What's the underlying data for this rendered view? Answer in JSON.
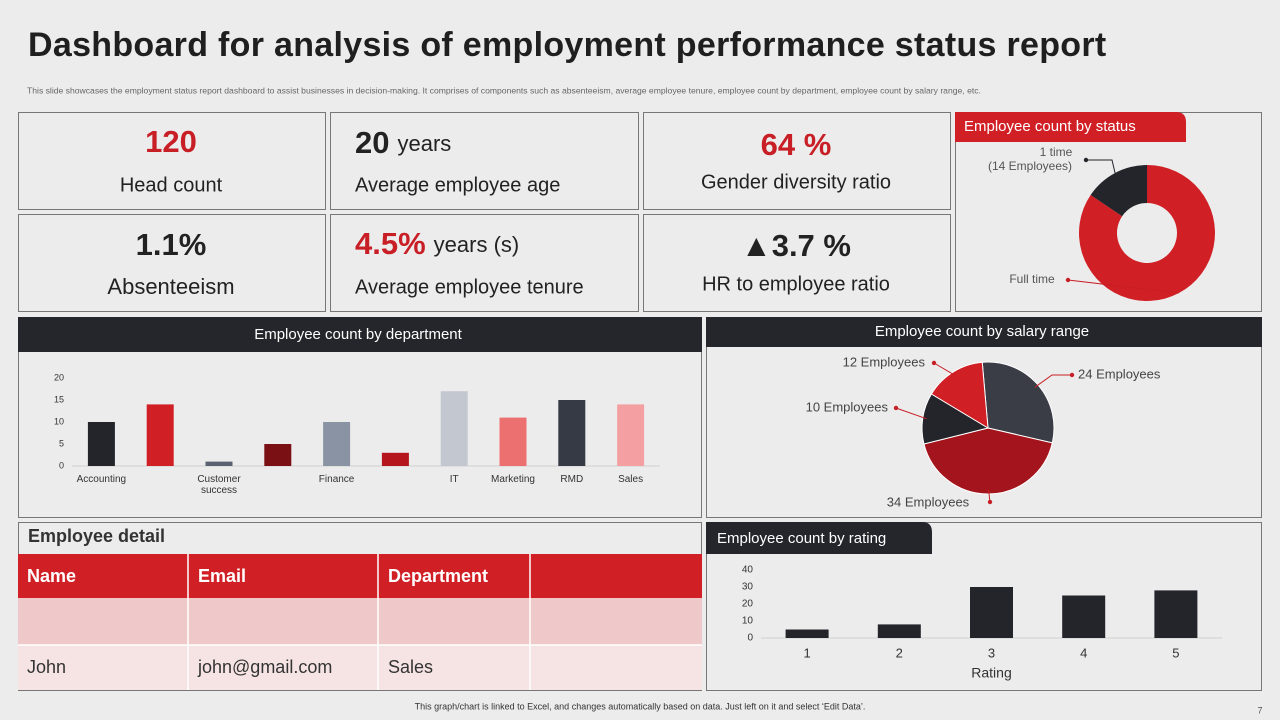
{
  "title": "Dashboard for analysis of employment performance status report",
  "subtitle": "This slide showcases the employment status report dashboard to assist businesses in decision-making. It comprises of components such as absenteeism, average employee tenure, employee count by department, employee count by salary range, etc.",
  "kpis": [
    {
      "value": "120",
      "label": "Head count"
    },
    {
      "value": "20",
      "unit": "years",
      "label": "Average employee age"
    },
    {
      "value": "64 %",
      "label": "Gender diversity ratio"
    },
    {
      "value": "1.1%",
      "label": "Absenteeism"
    },
    {
      "value": "4.5%",
      "unit": "years (s)",
      "label": "Average employee tenure"
    },
    {
      "value": "▲3.7 %",
      "label": "HR to employee ratio"
    }
  ],
  "chart_data": [
    {
      "type": "donut",
      "title": "Employee count by status",
      "categories": [
        "Full time",
        "1 time"
      ],
      "values": [
        76,
        14
      ],
      "value_labels": [
        null,
        "(14 Employees)"
      ],
      "colors": [
        "#d11f26",
        "#23252b"
      ]
    },
    {
      "type": "bar",
      "title": "Employee count by department",
      "categories": [
        "Accounting",
        null,
        "Customer success",
        null,
        "Finance",
        null,
        "IT",
        "Marketing",
        "RMD",
        "Sales"
      ],
      "values": [
        10,
        14,
        1,
        5,
        10,
        3,
        17,
        11,
        15,
        14
      ],
      "colors": [
        "#23252b",
        "#d11f26",
        "#5a6170",
        "#7a0f14",
        "#8a93a3",
        "#b5161d",
        "#c3c8d0",
        "#ec7070",
        "#353a44",
        "#f4a0a2"
      ],
      "ylim": [
        0,
        20
      ],
      "yticks": [
        0,
        5,
        10,
        15,
        20
      ]
    },
    {
      "type": "pie",
      "title": "Employee count by salary range",
      "values": [
        24,
        34,
        10,
        12
      ],
      "value_labels": [
        "24 Employees",
        "34 Employees",
        "10 Employees",
        "12 Employees"
      ],
      "colors": [
        "#3a3d45",
        "#a3141c",
        "#23252b",
        "#d11f26"
      ]
    },
    {
      "type": "bar",
      "title": "Employee count by rating",
      "categories": [
        "1",
        "2",
        "3",
        "4",
        "5"
      ],
      "values": [
        5,
        8,
        30,
        25,
        28
      ],
      "color": "#23252b",
      "x_label": "Rating",
      "ylim": [
        0,
        40
      ],
      "yticks": [
        0,
        10,
        20,
        30,
        40
      ]
    }
  ],
  "employee_detail": {
    "title": "Employee detail",
    "columns": [
      "Name",
      "Email",
      "Department"
    ],
    "rows": [
      [
        "John",
        "john@gmail.com",
        "Sales"
      ]
    ]
  },
  "footer": "This graph/chart is linked to Excel, and changes automatically based on data. Just left on it and select ‘Edit Data’.",
  "page_number": "7"
}
